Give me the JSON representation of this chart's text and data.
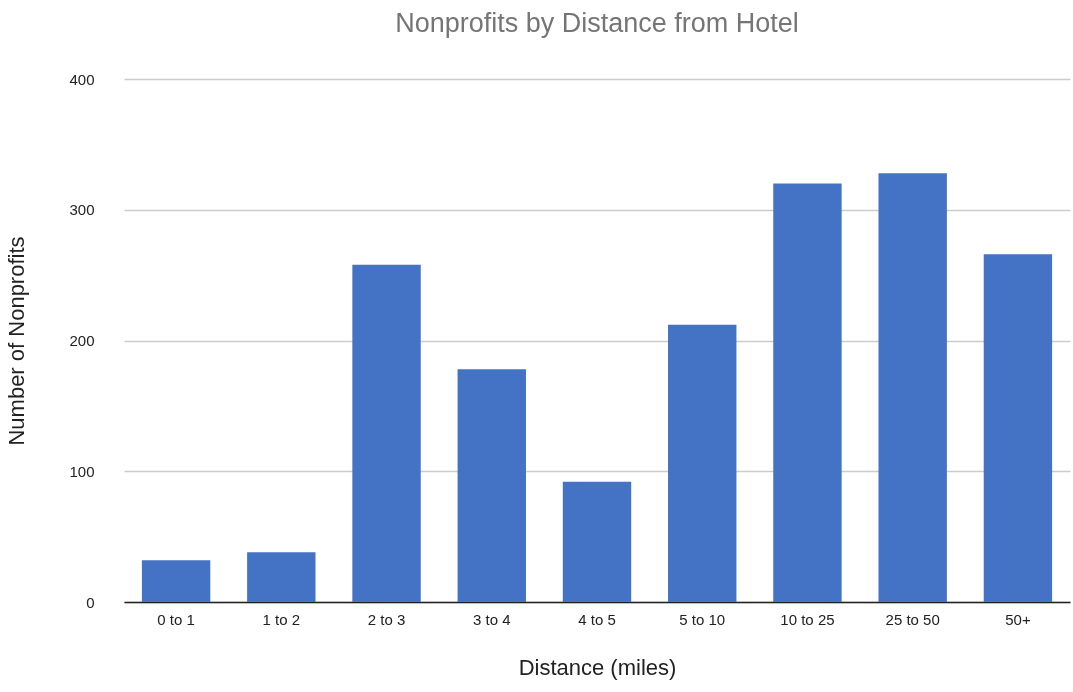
{
  "chart_data": {
    "type": "bar",
    "title": "Nonprofits by Distance from Hotel",
    "xlabel": "Distance (miles)",
    "ylabel": "Number of Nonprofits",
    "categories": [
      "0 to 1",
      "1 to 2",
      "2 to 3",
      "3 to 4",
      "4 to 5",
      "5 to 10",
      "10 to 25",
      "25 to 50",
      "50+"
    ],
    "values": [
      32,
      38,
      258,
      178,
      92,
      212,
      320,
      328,
      266
    ],
    "color": "#4472c4",
    "ylim": [
      0,
      400
    ],
    "yticks": [
      0,
      100,
      200,
      300,
      400
    ],
    "grid": "y"
  }
}
